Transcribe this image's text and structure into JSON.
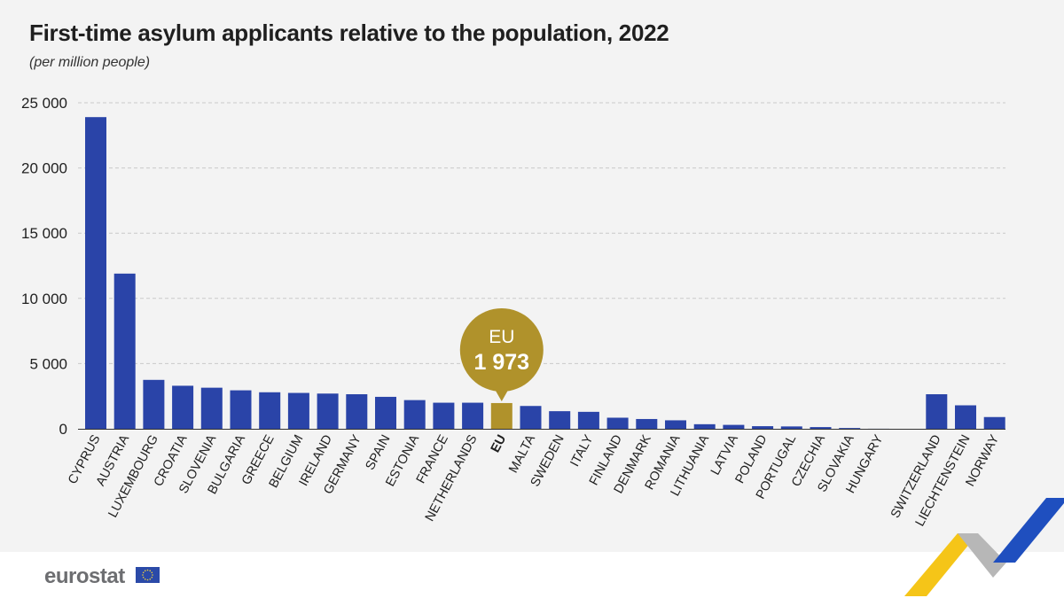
{
  "title": "First-time asylum applicants relative to the population, 2022",
  "subtitle": "(per million people)",
  "brand": {
    "name": "eurostat",
    "flag_icon": "eu-flag-icon"
  },
  "colors": {
    "bar": "#2a44a8",
    "eu_bar": "#b0922b",
    "grid": "#c9c9c9",
    "axis": "#333333",
    "text": "#1f1f1f"
  },
  "eu_callout": {
    "label": "EU",
    "value": "1 973"
  },
  "chart_data": {
    "type": "bar",
    "title": "First-time asylum applicants relative to the population, 2022",
    "ylabel": "(per million people)",
    "xlabel": "",
    "ylim": [
      0,
      25000
    ],
    "yticks": [
      0,
      5000,
      10000,
      15000,
      20000,
      25000
    ],
    "ytick_labels": [
      "0",
      "5 000",
      "10 000",
      "15 000",
      "20 000",
      "25 000"
    ],
    "grid": true,
    "categories": [
      "CYPRUS",
      "AUSTRIA",
      "LUXEMBOURG",
      "CROATIA",
      "SLOVENIA",
      "BULGARIA",
      "GREECE",
      "BELGIUM",
      "IRELAND",
      "GERMANY",
      "SPAIN",
      "ESTONIA",
      "FRANCE",
      "NETHERLANDS",
      "EU",
      "MALTA",
      "SWEDEN",
      "ITALY",
      "FINLAND",
      "DENMARK",
      "ROMANIA",
      "LITHUANIA",
      "LATVIA",
      "POLAND",
      "PORTUGAL",
      "CZECHIA",
      "SLOVAKIA",
      "HUNGARY",
      "",
      "SWITZERLAND",
      "LIECHTENSTEIN",
      "NORWAY"
    ],
    "values": [
      23900,
      11900,
      3750,
      3300,
      3150,
      2950,
      2800,
      2750,
      2700,
      2650,
      2450,
      2200,
      2000,
      2000,
      1973,
      1750,
      1350,
      1300,
      850,
      750,
      650,
      350,
      300,
      200,
      180,
      130,
      60,
      5,
      null,
      2650,
      1800,
      900
    ],
    "highlight": "EU"
  }
}
